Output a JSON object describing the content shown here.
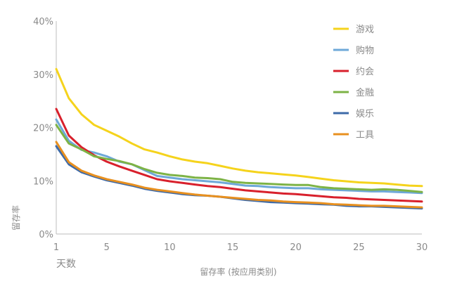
{
  "chart_data": {
    "type": "line",
    "title": "",
    "xlabel": "留存率 (按应用类别)",
    "ylabel": "留存率",
    "x_unit_label": "天数",
    "xlim": [
      1,
      30
    ],
    "ylim": [
      0,
      40
    ],
    "x_ticks": [
      1,
      5,
      10,
      15,
      20,
      25,
      30
    ],
    "y_ticks": [
      0,
      10,
      20,
      30,
      40
    ],
    "y_tick_labels": [
      "0%",
      "10%",
      "20%",
      "30%",
      "40%"
    ],
    "grid": false,
    "legend_position": "top-right",
    "x": [
      1,
      2,
      3,
      4,
      5,
      6,
      7,
      8,
      9,
      10,
      11,
      12,
      13,
      14,
      15,
      16,
      17,
      18,
      19,
      20,
      21,
      22,
      23,
      24,
      25,
      26,
      27,
      28,
      29,
      30
    ],
    "series": [
      {
        "name": "游戏",
        "color": "#f5d31c",
        "values": [
          31,
          25.5,
          22.5,
          20.5,
          19.4,
          18.3,
          17,
          15.9,
          15.3,
          14.6,
          14,
          13.6,
          13.3,
          12.8,
          12.3,
          11.9,
          11.6,
          11.4,
          11.2,
          11,
          10.7,
          10.4,
          10.1,
          9.9,
          9.7,
          9.6,
          9.5,
          9.3,
          9.1,
          9
        ]
      },
      {
        "name": "购物",
        "color": "#6ea8d8",
        "values": [
          21.5,
          17.5,
          15.8,
          15.3,
          14.6,
          13.6,
          13.1,
          12,
          10.9,
          10.6,
          10.3,
          10.1,
          9.9,
          9.7,
          9.4,
          9.1,
          9,
          8.8,
          8.7,
          8.6,
          8.6,
          8.4,
          8.3,
          8.2,
          8.1,
          8,
          8,
          7.9,
          7.8,
          7.7
        ]
      },
      {
        "name": "约会",
        "color": "#d8202c",
        "values": [
          23.5,
          18.5,
          16.3,
          14.8,
          13.6,
          12.7,
          11.9,
          11.1,
          10.3,
          9.9,
          9.6,
          9.3,
          9,
          8.8,
          8.5,
          8.2,
          8,
          7.8,
          7.6,
          7.5,
          7.3,
          7.1,
          6.9,
          6.8,
          6.6,
          6.5,
          6.4,
          6.3,
          6.2,
          6.1
        ]
      },
      {
        "name": "金融",
        "color": "#7db346",
        "values": [
          20.5,
          17,
          15.9,
          14.6,
          14.1,
          13.7,
          13.1,
          12.2,
          11.5,
          11.1,
          10.9,
          10.6,
          10.5,
          10.3,
          9.8,
          9.6,
          9.5,
          9.4,
          9.3,
          9.2,
          9.2,
          8.8,
          8.6,
          8.5,
          8.4,
          8.3,
          8.4,
          8.3,
          8.1,
          7.9
        ]
      },
      {
        "name": "娱乐",
        "color": "#3d6aa8",
        "values": [
          16.5,
          13.1,
          11.6,
          10.8,
          10.1,
          9.6,
          9.1,
          8.5,
          8.1,
          7.8,
          7.5,
          7.3,
          7.2,
          7,
          6.7,
          6.4,
          6.2,
          6,
          5.9,
          5.8,
          5.7,
          5.6,
          5.5,
          5.3,
          5.2,
          5.2,
          5.1,
          5,
          4.9,
          4.8
        ]
      },
      {
        "name": "工具",
        "color": "#e8901f",
        "values": [
          17.3,
          13.5,
          11.9,
          11,
          10.3,
          9.8,
          9.3,
          8.7,
          8.3,
          8,
          7.7,
          7.4,
          7.2,
          7,
          6.8,
          6.6,
          6.4,
          6.3,
          6.1,
          6,
          5.9,
          5.8,
          5.6,
          5.5,
          5.4,
          5.3,
          5.3,
          5.2,
          5.1,
          5
        ]
      }
    ]
  }
}
